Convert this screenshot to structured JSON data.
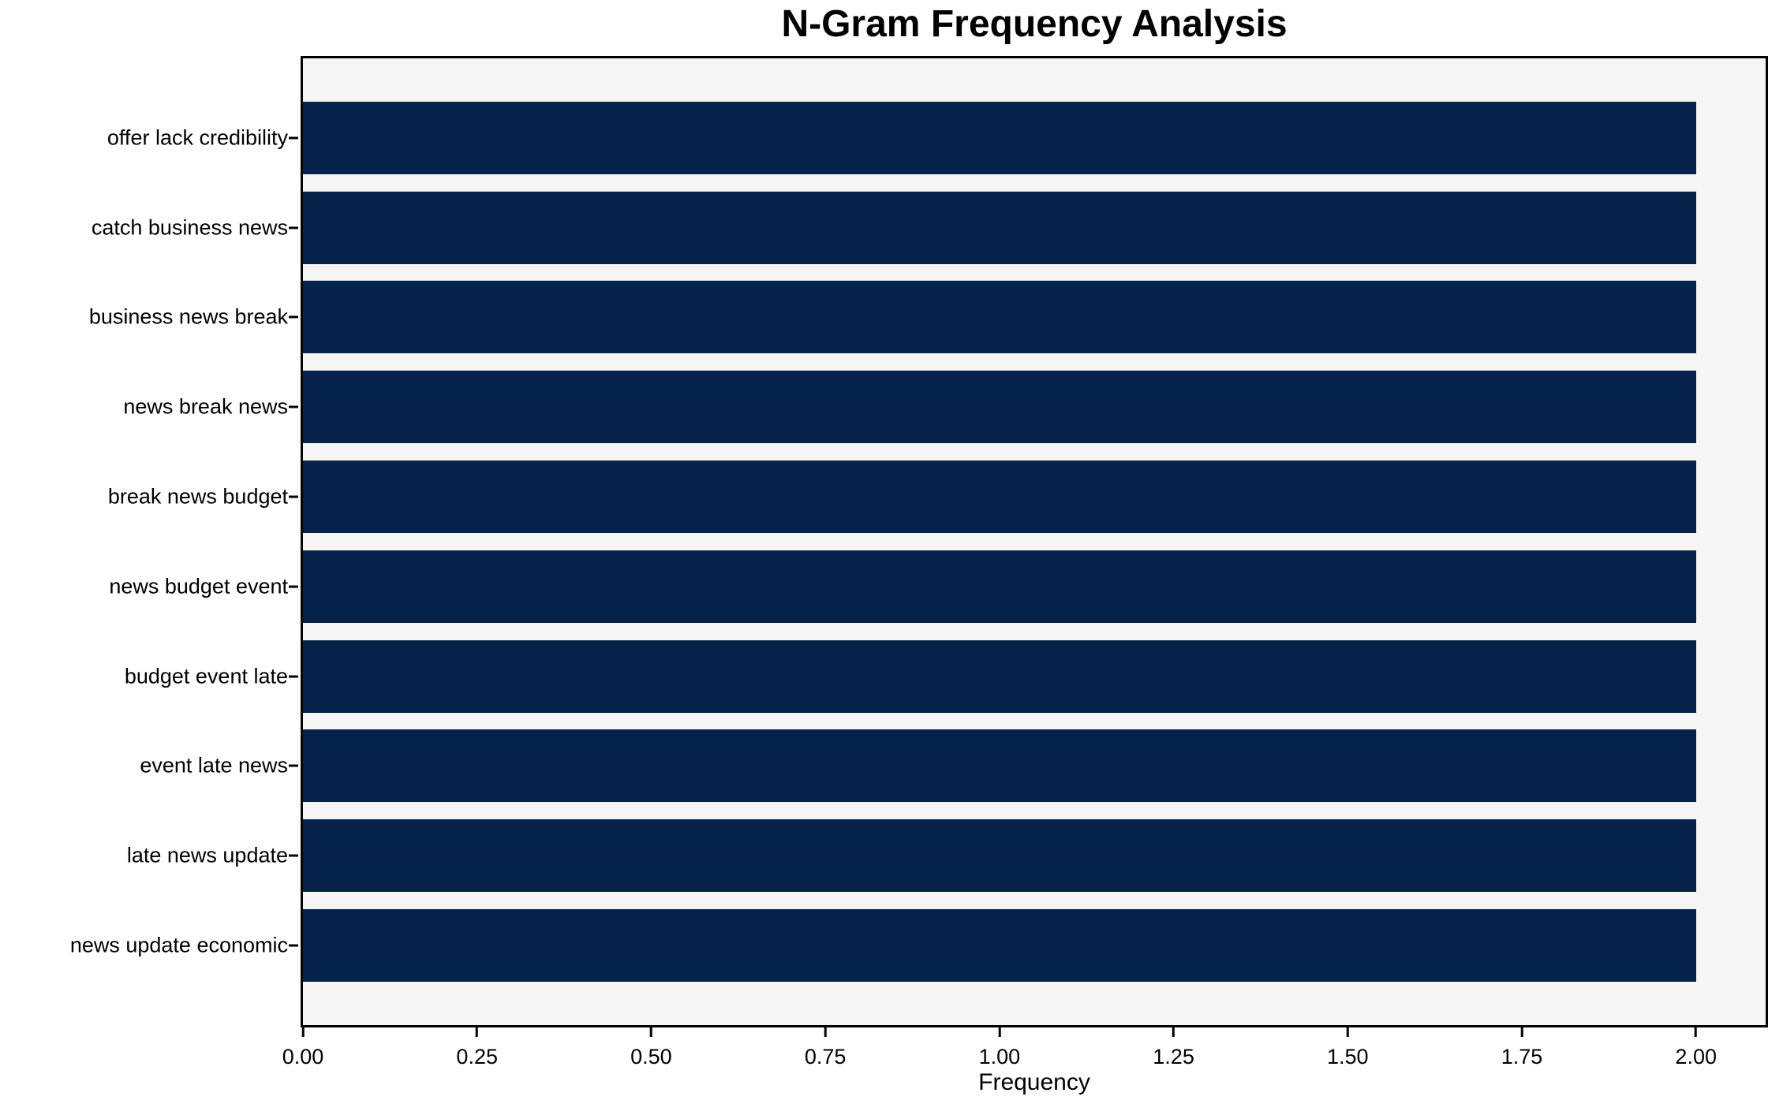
{
  "chart_data": {
    "type": "bar",
    "orientation": "horizontal",
    "title": "N-Gram Frequency Analysis",
    "xlabel": "Frequency",
    "ylabel": "",
    "categories": [
      "offer lack credibility",
      "catch business news",
      "business news break",
      "news break news",
      "break news budget",
      "news budget event",
      "budget event late",
      "event late news",
      "late news update",
      "news update economic"
    ],
    "values": [
      2.0,
      2.0,
      2.0,
      2.0,
      2.0,
      2.0,
      2.0,
      2.0,
      2.0,
      2.0
    ],
    "xlim": [
      0,
      2.1
    ],
    "xticks": [
      0.0,
      0.25,
      0.5,
      0.75,
      1.0,
      1.25,
      1.5,
      1.75,
      2.0
    ],
    "xtick_labels": [
      "0.00",
      "0.25",
      "0.50",
      "0.75",
      "1.00",
      "1.25",
      "1.50",
      "1.75",
      "2.00"
    ],
    "grid": false,
    "legend": null,
    "colors": {
      "bar": "#05224a",
      "plot_bg": "#f5f5f6",
      "figure_bg": "#ffffff",
      "spine": "#000000",
      "text": "#000000"
    }
  }
}
